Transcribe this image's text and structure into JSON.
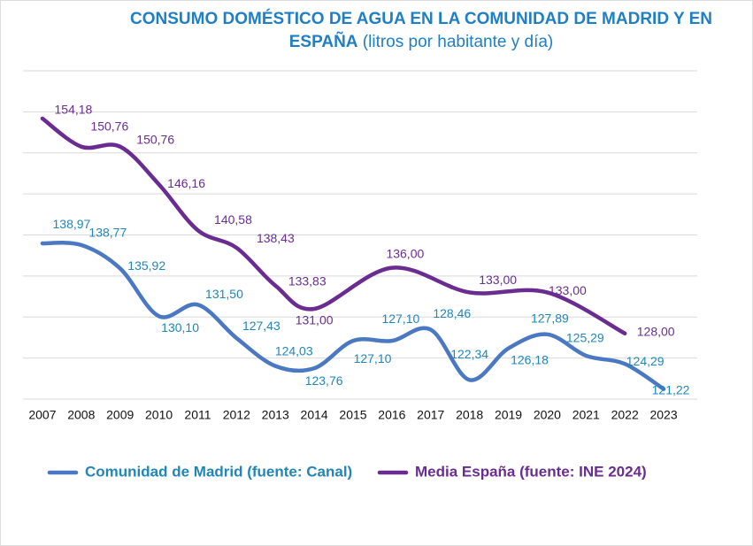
{
  "chart_data": {
    "type": "line",
    "title": "CONSUMO DOMÉSTICO DE AGUA EN LA COMUNIDAD DE MADRID Y EN ESPAÑA",
    "subtitle": "(litros por habitante y día)",
    "xlim": [
      2006.5,
      2023.5
    ],
    "xticks": [
      2007,
      2008,
      2009,
      2010,
      2011,
      2012,
      2013,
      2014,
      2015,
      2016,
      2017,
      2018,
      2019,
      2020,
      2021,
      2022,
      2023
    ],
    "ylim": [
      120,
      160
    ],
    "yticks": [
      120,
      125,
      130,
      135,
      140,
      145,
      150,
      155,
      160
    ],
    "grid": true,
    "series": [
      {
        "name": "Comunidad de Madrid (fuente: Canal)",
        "color": "#4a78c2",
        "label_color": "#1f86b8",
        "x": [
          2007,
          2008,
          2009,
          2010,
          2011,
          2012,
          2013,
          2014,
          2015,
          2016,
          2017,
          2018,
          2019,
          2020,
          2021,
          2022,
          2023
        ],
        "values": [
          138.97,
          138.77,
          135.92,
          130.1,
          131.5,
          127.43,
          124.03,
          123.76,
          127.1,
          127.1,
          128.46,
          122.34,
          126.18,
          127.89,
          125.29,
          124.29,
          121.22
        ],
        "value_labels": [
          "138,97",
          "138,77",
          "135,92",
          "130,10",
          "131,50",
          "127,43",
          "124,03",
          "123,76",
          "127,10",
          "127,10",
          "128,46",
          "122,34",
          "126,18",
          "127,89",
          "125,29",
          "124,29",
          "121,22"
        ]
      },
      {
        "name": "Media España (fuente: INE 2024)",
        "color": "#6a2c91",
        "label_color": "#6a2c91",
        "x": [
          2007,
          2008,
          2009,
          2010,
          2011,
          2012,
          2013,
          2014,
          2016,
          2018,
          2020,
          2022
        ],
        "values": [
          154.18,
          150.76,
          150.76,
          146.16,
          140.58,
          138.43,
          133.83,
          131.0,
          136.0,
          133.0,
          133.0,
          128.0
        ],
        "value_labels": [
          "154,18",
          "150,76",
          "150,76",
          "146,16",
          "140,58",
          "138,43",
          "133,83",
          "131,00",
          "136,00",
          "133,00",
          "133,00",
          "128,00"
        ]
      }
    ]
  }
}
